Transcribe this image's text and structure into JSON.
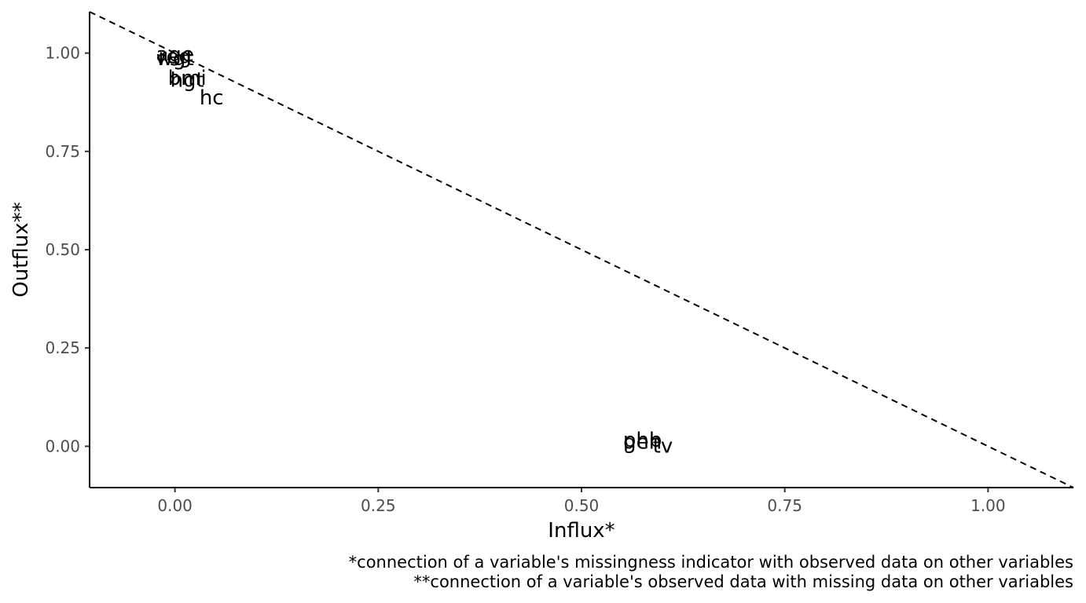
{
  "chart_data": {
    "type": "scatter",
    "title": "",
    "xlabel": "Influx*",
    "ylabel": "Outflux**",
    "xlim": [
      -0.105,
      1.105
    ],
    "ylim": [
      -0.105,
      1.105
    ],
    "x_ticks": [
      0.0,
      0.25,
      0.5,
      0.75,
      1.0
    ],
    "x_tick_labels": [
      "0.00",
      "0.25",
      "0.50",
      "0.75",
      "1.00"
    ],
    "y_ticks": [
      0.0,
      0.25,
      0.5,
      0.75,
      1.0
    ],
    "y_tick_labels": [
      "0.00",
      "0.25",
      "0.50",
      "0.75",
      "1.00"
    ],
    "points": [
      {
        "label": "age",
        "x": 0.0,
        "y": 0.995
      },
      {
        "label": "reg",
        "x": 0.0,
        "y": 0.99
      },
      {
        "label": "wgt",
        "x": 0.0,
        "y": 0.985
      },
      {
        "label": "bmi",
        "x": 0.015,
        "y": 0.935
      },
      {
        "label": "hgt",
        "x": 0.015,
        "y": 0.93
      },
      {
        "label": "hc",
        "x": 0.045,
        "y": 0.885
      },
      {
        "label": "gen",
        "x": 0.575,
        "y": 0.01
      },
      {
        "label": "phb",
        "x": 0.575,
        "y": 0.015
      },
      {
        "label": "tv",
        "x": 0.6,
        "y": 0.0
      }
    ],
    "reference_line": {
      "style": "dashed",
      "from": [
        -0.105,
        1.105
      ],
      "to": [
        1.105,
        -0.105
      ]
    },
    "grid": false,
    "legend": "none"
  },
  "caption": {
    "line1": "*connection of a variable's missingness indicator with observed data on other variables",
    "line2": "**connection of a variable's observed data with missing data on other variables"
  }
}
